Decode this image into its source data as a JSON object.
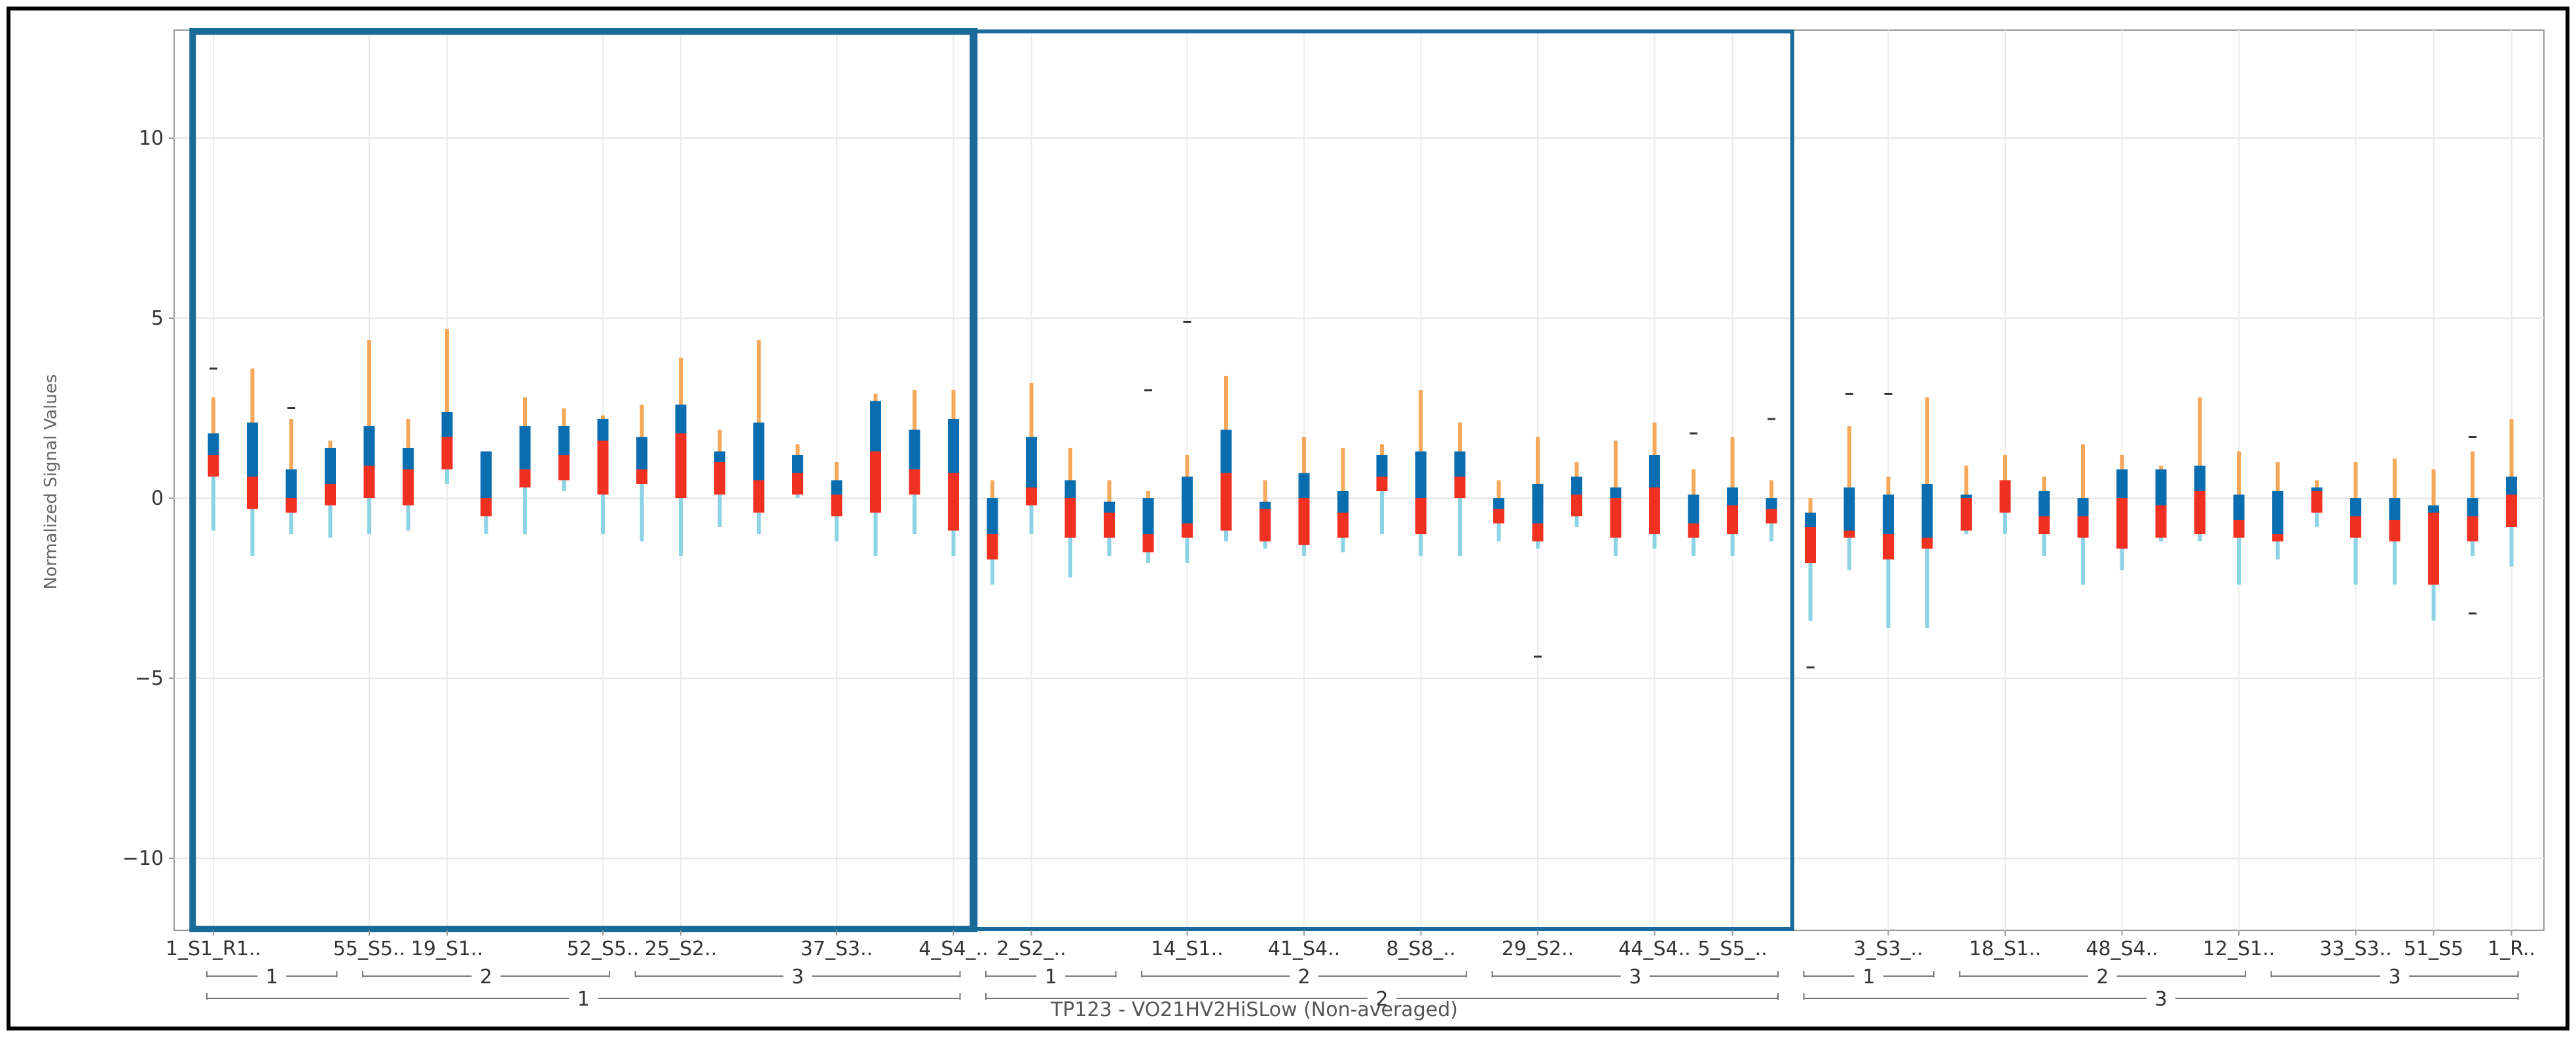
{
  "chart_data": {
    "type": "box",
    "title": "",
    "ylabel": "Normalized Signal Values",
    "xlabel": "TP123 - VO21HV2HiSLow (Non-averaged)",
    "ylim": [
      -12,
      13
    ],
    "yticks": [
      -10,
      -5,
      0,
      5,
      10
    ],
    "grid": true,
    "colors": {
      "upper_box": "#0a6db0",
      "lower_box": "#f03021",
      "upper_whisker": "#f6a85a",
      "lower_whisker": "#8dd3e6",
      "outlier": "#333333",
      "frame": "#1a6a9a"
    },
    "boxes": [
      {
        "q1": 0.6,
        "median": 1.2,
        "q3": 1.8,
        "whislo": -0.9,
        "whishi": 2.8,
        "outliers": [
          3.6
        ]
      },
      {
        "q1": -0.3,
        "median": 0.6,
        "q3": 2.1,
        "whislo": -1.6,
        "whishi": 3.6,
        "outliers": []
      },
      {
        "q1": -0.4,
        "median": 0.0,
        "q3": 0.8,
        "whislo": -1.0,
        "whishi": 2.2,
        "outliers": [
          2.5
        ]
      },
      {
        "q1": -0.2,
        "median": 0.4,
        "q3": 1.4,
        "whislo": -1.1,
        "whishi": 1.6,
        "outliers": []
      },
      {
        "q1": 0.0,
        "median": 0.9,
        "q3": 2.0,
        "whislo": -1.0,
        "whishi": 4.4,
        "outliers": []
      },
      {
        "q1": -0.2,
        "median": 0.8,
        "q3": 1.4,
        "whislo": -0.9,
        "whishi": 2.2,
        "outliers": []
      },
      {
        "q1": 0.8,
        "median": 1.7,
        "q3": 2.4,
        "whislo": 0.4,
        "whishi": 4.7,
        "outliers": []
      },
      {
        "q1": -0.5,
        "median": 0.0,
        "q3": 1.3,
        "whislo": -1.0,
        "whishi": 1.3,
        "outliers": []
      },
      {
        "q1": 0.3,
        "median": 0.8,
        "q3": 2.0,
        "whislo": -1.0,
        "whishi": 2.8,
        "outliers": []
      },
      {
        "q1": 0.5,
        "median": 1.2,
        "q3": 2.0,
        "whislo": 0.2,
        "whishi": 2.5,
        "outliers": []
      },
      {
        "q1": 0.1,
        "median": 1.6,
        "q3": 2.2,
        "whislo": -1.0,
        "whishi": 2.3,
        "outliers": []
      },
      {
        "q1": 0.4,
        "median": 0.8,
        "q3": 1.7,
        "whislo": -1.2,
        "whishi": 2.6,
        "outliers": []
      },
      {
        "q1": 0.0,
        "median": 1.8,
        "q3": 2.6,
        "whislo": -1.6,
        "whishi": 3.9,
        "outliers": []
      },
      {
        "q1": 0.1,
        "median": 1.0,
        "q3": 1.3,
        "whislo": -0.8,
        "whishi": 1.9,
        "outliers": []
      },
      {
        "q1": -0.4,
        "median": 0.5,
        "q3": 2.1,
        "whislo": -1.0,
        "whishi": 4.4,
        "outliers": []
      },
      {
        "q1": 0.1,
        "median": 0.7,
        "q3": 1.2,
        "whislo": 0.0,
        "whishi": 1.5,
        "outliers": []
      },
      {
        "q1": -0.5,
        "median": 0.1,
        "q3": 0.5,
        "whislo": -1.2,
        "whishi": 1.0,
        "outliers": []
      },
      {
        "q1": -0.4,
        "median": 1.3,
        "q3": 2.7,
        "whislo": -1.6,
        "whishi": 2.9,
        "outliers": []
      },
      {
        "q1": 0.1,
        "median": 0.8,
        "q3": 1.9,
        "whislo": -1.0,
        "whishi": 3.0,
        "outliers": []
      },
      {
        "q1": -0.9,
        "median": 0.7,
        "q3": 2.2,
        "whislo": -1.6,
        "whishi": 3.0,
        "outliers": []
      },
      {
        "q1": -1.7,
        "median": -1.0,
        "q3": 0.0,
        "whislo": -2.4,
        "whishi": 0.5,
        "outliers": []
      },
      {
        "q1": -0.2,
        "median": 0.3,
        "q3": 1.7,
        "whislo": -1.0,
        "whishi": 3.2,
        "outliers": []
      },
      {
        "q1": -1.1,
        "median": 0.0,
        "q3": 0.5,
        "whislo": -2.2,
        "whishi": 1.4,
        "outliers": []
      },
      {
        "q1": -1.1,
        "median": -0.4,
        "q3": -0.1,
        "whislo": -1.6,
        "whishi": 0.5,
        "outliers": []
      },
      {
        "q1": -1.5,
        "median": -1.0,
        "q3": 0.0,
        "whislo": -1.8,
        "whishi": 0.2,
        "outliers": [
          3.0
        ]
      },
      {
        "q1": -1.1,
        "median": -0.7,
        "q3": 0.6,
        "whislo": -1.8,
        "whishi": 1.2,
        "outliers": [
          4.9
        ]
      },
      {
        "q1": -0.9,
        "median": 0.7,
        "q3": 1.9,
        "whislo": -1.2,
        "whishi": 3.4,
        "outliers": []
      },
      {
        "q1": -1.2,
        "median": -0.3,
        "q3": -0.1,
        "whislo": -1.4,
        "whishi": 0.5,
        "outliers": []
      },
      {
        "q1": -1.3,
        "median": 0.0,
        "q3": 0.7,
        "whislo": -1.6,
        "whishi": 1.7,
        "outliers": []
      },
      {
        "q1": -1.1,
        "median": -0.4,
        "q3": 0.2,
        "whislo": -1.5,
        "whishi": 1.4,
        "outliers": []
      },
      {
        "q1": 0.2,
        "median": 0.6,
        "q3": 1.2,
        "whislo": -1.0,
        "whishi": 1.5,
        "outliers": []
      },
      {
        "q1": -1.0,
        "median": 0.0,
        "q3": 1.3,
        "whislo": -1.6,
        "whishi": 3.0,
        "outliers": []
      },
      {
        "q1": 0.0,
        "median": 0.6,
        "q3": 1.3,
        "whislo": -1.6,
        "whishi": 2.1,
        "outliers": []
      },
      {
        "q1": -0.7,
        "median": -0.3,
        "q3": 0.0,
        "whislo": -1.2,
        "whishi": 0.5,
        "outliers": []
      },
      {
        "q1": -1.2,
        "median": -0.7,
        "q3": 0.4,
        "whislo": -1.4,
        "whishi": 1.7,
        "outliers": [
          -4.4
        ]
      },
      {
        "q1": -0.5,
        "median": 0.1,
        "q3": 0.6,
        "whislo": -0.8,
        "whishi": 1.0,
        "outliers": []
      },
      {
        "q1": -1.1,
        "median": 0.0,
        "q3": 0.3,
        "whislo": -1.6,
        "whishi": 1.6,
        "outliers": []
      },
      {
        "q1": -1.0,
        "median": 0.3,
        "q3": 1.2,
        "whislo": -1.4,
        "whishi": 2.1,
        "outliers": []
      },
      {
        "q1": -1.1,
        "median": -0.7,
        "q3": 0.1,
        "whislo": -1.6,
        "whishi": 0.8,
        "outliers": [
          1.8
        ]
      },
      {
        "q1": -1.0,
        "median": -0.2,
        "q3": 0.3,
        "whislo": -1.6,
        "whishi": 1.7,
        "outliers": []
      },
      {
        "q1": -0.7,
        "median": -0.3,
        "q3": 0.0,
        "whislo": -1.2,
        "whishi": 0.5,
        "outliers": [
          2.2
        ]
      },
      {
        "q1": -1.8,
        "median": -0.8,
        "q3": -0.4,
        "whislo": -3.4,
        "whishi": 0.0,
        "outliers": [
          -4.7
        ]
      },
      {
        "q1": -1.1,
        "median": -0.9,
        "q3": 0.3,
        "whislo": -2.0,
        "whishi": 2.0,
        "outliers": [
          2.9
        ]
      },
      {
        "q1": -1.7,
        "median": -1.0,
        "q3": 0.1,
        "whislo": -3.6,
        "whishi": 0.6,
        "outliers": [
          2.9
        ]
      },
      {
        "q1": -1.4,
        "median": -1.1,
        "q3": 0.4,
        "whislo": -3.6,
        "whishi": 2.8,
        "outliers": []
      },
      {
        "q1": -0.9,
        "median": 0.0,
        "q3": 0.1,
        "whislo": -1.0,
        "whishi": 0.9,
        "outliers": []
      },
      {
        "q1": -0.4,
        "median": 0.5,
        "q3": 0.5,
        "whislo": -1.0,
        "whishi": 1.2,
        "outliers": []
      },
      {
        "q1": -1.0,
        "median": -0.5,
        "q3": 0.2,
        "whislo": -1.6,
        "whishi": 0.6,
        "outliers": []
      },
      {
        "q1": -1.1,
        "median": -0.5,
        "q3": 0.0,
        "whislo": -2.4,
        "whishi": 1.5,
        "outliers": []
      },
      {
        "q1": -1.4,
        "median": 0.0,
        "q3": 0.8,
        "whislo": -2.0,
        "whishi": 1.2,
        "outliers": []
      },
      {
        "q1": -1.1,
        "median": -0.2,
        "q3": 0.8,
        "whislo": -1.2,
        "whishi": 0.9,
        "outliers": []
      },
      {
        "q1": -1.0,
        "median": 0.2,
        "q3": 0.9,
        "whislo": -1.2,
        "whishi": 2.8,
        "outliers": []
      },
      {
        "q1": -1.1,
        "median": -0.6,
        "q3": 0.1,
        "whislo": -2.4,
        "whishi": 1.3,
        "outliers": []
      },
      {
        "q1": -1.2,
        "median": -1.0,
        "q3": 0.2,
        "whislo": -1.7,
        "whishi": 1.0,
        "outliers": []
      },
      {
        "q1": -0.4,
        "median": 0.2,
        "q3": 0.3,
        "whislo": -0.8,
        "whishi": 0.5,
        "outliers": []
      },
      {
        "q1": -1.1,
        "median": -0.5,
        "q3": 0.0,
        "whislo": -2.4,
        "whishi": 1.0,
        "outliers": []
      },
      {
        "q1": -1.2,
        "median": -0.6,
        "q3": 0.0,
        "whislo": -2.4,
        "whishi": 1.1,
        "outliers": []
      },
      {
        "q1": -2.4,
        "median": -0.4,
        "q3": -0.2,
        "whislo": -3.4,
        "whishi": 0.8,
        "outliers": []
      },
      {
        "q1": -1.2,
        "median": -0.5,
        "q3": 0.0,
        "whislo": -1.6,
        "whishi": 1.3,
        "outliers": [
          1.7,
          -3.2
        ]
      },
      {
        "q1": -0.8,
        "median": 0.1,
        "q3": 0.6,
        "whislo": -1.9,
        "whishi": 2.2,
        "outliers": []
      }
    ],
    "tick_labels": [
      {
        "box": 0,
        "text": "1_S1_R1.."
      },
      {
        "box": 4,
        "text": "55_S5.."
      },
      {
        "box": 6,
        "text": "19_S1.."
      },
      {
        "box": 10,
        "text": "52_S5.."
      },
      {
        "box": 12,
        "text": "25_S2.."
      },
      {
        "box": 16,
        "text": "37_S3.."
      },
      {
        "box": 19,
        "text": "4_S4_.."
      },
      {
        "box": 21,
        "text": "2_S2_.."
      },
      {
        "box": 25,
        "text": "14_S1.."
      },
      {
        "box": 28,
        "text": "41_S4.."
      },
      {
        "box": 31,
        "text": "8_S8_.."
      },
      {
        "box": 34,
        "text": "29_S2.."
      },
      {
        "box": 37,
        "text": "44_S4.."
      },
      {
        "box": 39,
        "text": "5_S5_.."
      },
      {
        "box": 43,
        "text": "3_S3_.."
      },
      {
        "box": 46,
        "text": "18_S1.."
      },
      {
        "box": 49,
        "text": "48_S4.."
      },
      {
        "box": 52,
        "text": "12_S1.."
      },
      {
        "box": 55,
        "text": "33_S3.."
      },
      {
        "box": 57,
        "text": "51_S5"
      },
      {
        "box": 59,
        "text": "1_R.."
      }
    ],
    "sub_groups": [
      {
        "label": "1",
        "from": 0,
        "to": 3
      },
      {
        "label": "2",
        "from": 4,
        "to": 10
      },
      {
        "label": "3",
        "from": 11,
        "to": 19
      },
      {
        "label": "1",
        "from": 20,
        "to": 23
      },
      {
        "label": "2",
        "from": 24,
        "to": 32
      },
      {
        "label": "3",
        "from": 33,
        "to": 40
      },
      {
        "label": "1",
        "from": 41,
        "to": 44
      },
      {
        "label": "2",
        "from": 45,
        "to": 52
      },
      {
        "label": "3",
        "from": 53,
        "to": 59
      }
    ],
    "groups": [
      {
        "label": "1",
        "from": 0,
        "to": 19
      },
      {
        "label": "2",
        "from": 20,
        "to": 40
      },
      {
        "label": "3",
        "from": 41,
        "to": 59
      }
    ],
    "highlight_groups": [
      0,
      1
    ]
  }
}
